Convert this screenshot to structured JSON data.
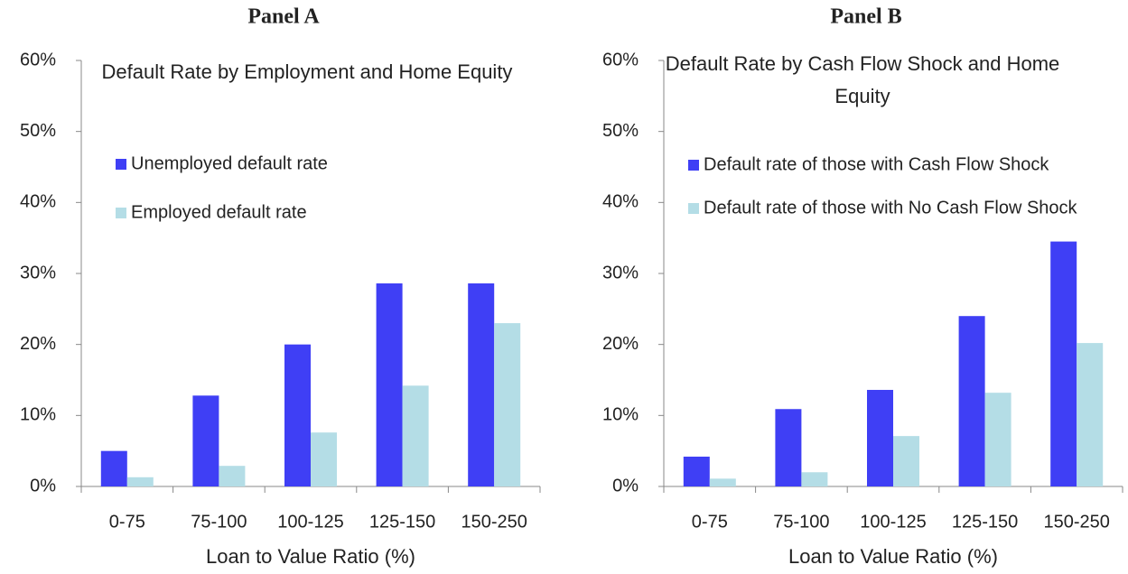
{
  "chart_data": [
    {
      "type": "bar",
      "title": "Panel A",
      "subtitle": "Default Rate by Employment and Home Equity",
      "x_label": "Loan to Value Ratio (%)",
      "categories": [
        "0-75",
        "75-100",
        "100-125",
        "125-150",
        "150-250"
      ],
      "series": [
        {
          "name": "Unemployed default rate",
          "color": "#3f3ff5",
          "values": [
            5.0,
            12.8,
            20.0,
            28.6,
            28.6
          ]
        },
        {
          "name": "Employed default rate",
          "color": "#b4dde6",
          "values": [
            1.3,
            2.9,
            7.6,
            14.2,
            23.0
          ]
        }
      ],
      "ylim": [
        0,
        60
      ],
      "yticks": [
        {
          "value": 0,
          "label": "0%"
        },
        {
          "value": 10,
          "label": "10%"
        },
        {
          "value": 20,
          "label": "20%"
        },
        {
          "value": 30,
          "label": "30%"
        },
        {
          "value": 40,
          "label": "40%"
        },
        {
          "value": 50,
          "label": "50%"
        },
        {
          "value": 60,
          "label": "60%"
        }
      ],
      "grid": false,
      "legend": "upper left"
    },
    {
      "type": "bar",
      "title": "Panel B",
      "subtitle": "Default Rate by Cash Flow Shock and Home Equity",
      "x_label": "Loan to Value Ratio (%)",
      "categories": [
        "0-75",
        "75-100",
        "100-125",
        "125-150",
        "150-250"
      ],
      "series": [
        {
          "name": "Default rate of those with Cash Flow Shock",
          "color": "#3f3ff5",
          "values": [
            4.2,
            10.9,
            13.6,
            24.0,
            34.5
          ]
        },
        {
          "name": "Default rate of those with No Cash Flow Shock",
          "color": "#b4dde6",
          "values": [
            1.1,
            2.0,
            7.1,
            13.2,
            20.2
          ]
        }
      ],
      "ylim": [
        0,
        60
      ],
      "yticks": [
        {
          "value": 0,
          "label": "0%"
        },
        {
          "value": 10,
          "label": "10%"
        },
        {
          "value": 20,
          "label": "20%"
        },
        {
          "value": 30,
          "label": "30%"
        },
        {
          "value": 40,
          "label": "40%"
        },
        {
          "value": 50,
          "label": "50%"
        },
        {
          "value": 60,
          "label": "60%"
        }
      ],
      "grid": false,
      "legend": "upper left"
    }
  ]
}
